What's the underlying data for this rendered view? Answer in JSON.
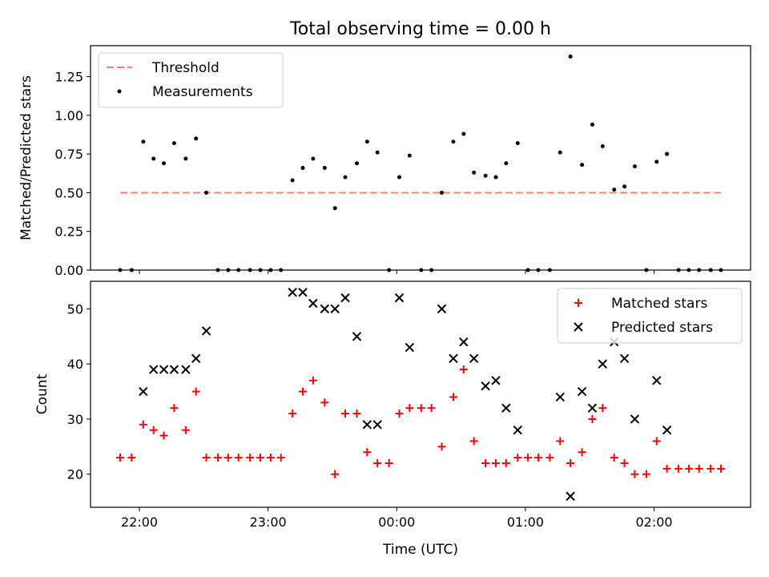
{
  "figure": {
    "title": "Total observing time = 0.00 h",
    "xlabel": "Time (UTC)",
    "xticks": [
      {
        "label": "22:00",
        "t": 22.0
      },
      {
        "label": "23:00",
        "t": 23.0
      },
      {
        "label": "00:00",
        "t": 24.0
      },
      {
        "label": "01:00",
        "t": 25.0
      },
      {
        "label": "02:00",
        "t": 26.0
      }
    ],
    "xlim": [
      21.62,
      26.75
    ]
  },
  "chart_data": [
    {
      "type": "scatter",
      "ylabel": "Matched/Predicted stars",
      "ylim": [
        0,
        1.45
      ],
      "yticks": [
        "0.00",
        "0.25",
        "0.50",
        "0.75",
        "1.00",
        "1.25"
      ],
      "legend": {
        "position": "upper-left",
        "entries": [
          "Threshold",
          "Measurements"
        ]
      },
      "threshold": {
        "name": "Threshold",
        "y": 0.5,
        "x_range": [
          21.85,
          26.53
        ],
        "color": "#ff7f7f"
      },
      "series": [
        {
          "name": "Measurements",
          "color": "#000000",
          "points": [
            [
              21.85,
              0.0
            ],
            [
              21.94,
              0.0
            ],
            [
              22.03,
              0.83
            ],
            [
              22.11,
              0.72
            ],
            [
              22.19,
              0.69
            ],
            [
              22.27,
              0.82
            ],
            [
              22.36,
              0.72
            ],
            [
              22.44,
              0.85
            ],
            [
              22.52,
              0.5
            ],
            [
              22.61,
              0.0
            ],
            [
              22.69,
              0.0
            ],
            [
              22.77,
              0.0
            ],
            [
              22.86,
              0.0
            ],
            [
              22.94,
              0.0
            ],
            [
              23.02,
              0.0
            ],
            [
              23.1,
              0.0
            ],
            [
              23.19,
              0.58
            ],
            [
              23.27,
              0.66
            ],
            [
              23.35,
              0.72
            ],
            [
              23.44,
              0.66
            ],
            [
              23.52,
              0.4
            ],
            [
              23.6,
              0.6
            ],
            [
              23.69,
              0.69
            ],
            [
              23.77,
              0.83
            ],
            [
              23.85,
              0.76
            ],
            [
              23.94,
              0.0
            ],
            [
              24.02,
              0.6
            ],
            [
              24.1,
              0.74
            ],
            [
              24.19,
              0.0
            ],
            [
              24.27,
              0.0
            ],
            [
              24.35,
              0.5
            ],
            [
              24.44,
              0.83
            ],
            [
              24.52,
              0.88
            ],
            [
              24.6,
              0.63
            ],
            [
              24.69,
              0.61
            ],
            [
              24.77,
              0.6
            ],
            [
              24.85,
              0.69
            ],
            [
              24.94,
              0.82
            ],
            [
              25.02,
              0.0
            ],
            [
              25.1,
              0.0
            ],
            [
              25.19,
              0.0
            ],
            [
              25.27,
              0.76
            ],
            [
              25.35,
              1.38
            ],
            [
              25.44,
              0.68
            ],
            [
              25.52,
              0.94
            ],
            [
              25.6,
              0.8
            ],
            [
              25.69,
              0.52
            ],
            [
              25.77,
              0.54
            ],
            [
              25.85,
              0.67
            ],
            [
              25.94,
              0.0
            ],
            [
              26.02,
              0.7
            ],
            [
              26.1,
              0.75
            ],
            [
              26.19,
              0.0
            ],
            [
              26.27,
              0.0
            ],
            [
              26.35,
              0.0
            ],
            [
              26.44,
              0.0
            ],
            [
              26.52,
              0.0
            ]
          ]
        }
      ]
    },
    {
      "type": "scatter",
      "ylabel": "Count",
      "ylim": [
        14,
        55
      ],
      "yticks": [
        "20",
        "30",
        "40",
        "50"
      ],
      "legend": {
        "position": "upper-right",
        "entries": [
          "Matched stars",
          "Predicted stars"
        ]
      },
      "series": [
        {
          "name": "Matched stars",
          "marker": "+",
          "color": "#ff0000",
          "points": [
            [
              21.85,
              23
            ],
            [
              21.94,
              23
            ],
            [
              22.03,
              29
            ],
            [
              22.11,
              28
            ],
            [
              22.19,
              27
            ],
            [
              22.27,
              32
            ],
            [
              22.36,
              28
            ],
            [
              22.44,
              35
            ],
            [
              22.52,
              23
            ],
            [
              22.61,
              23
            ],
            [
              22.69,
              23
            ],
            [
              22.77,
              23
            ],
            [
              22.86,
              23
            ],
            [
              22.94,
              23
            ],
            [
              23.02,
              23
            ],
            [
              23.1,
              23
            ],
            [
              23.19,
              31
            ],
            [
              23.27,
              35
            ],
            [
              23.35,
              37
            ],
            [
              23.44,
              33
            ],
            [
              23.52,
              20
            ],
            [
              23.6,
              31
            ],
            [
              23.69,
              31
            ],
            [
              23.77,
              24
            ],
            [
              23.85,
              22
            ],
            [
              23.94,
              22
            ],
            [
              24.02,
              31
            ],
            [
              24.1,
              32
            ],
            [
              24.19,
              32
            ],
            [
              24.27,
              32
            ],
            [
              24.35,
              25
            ],
            [
              24.44,
              34
            ],
            [
              24.52,
              39
            ],
            [
              24.6,
              26
            ],
            [
              24.69,
              22
            ],
            [
              24.77,
              22
            ],
            [
              24.85,
              22
            ],
            [
              24.94,
              23
            ],
            [
              25.02,
              23
            ],
            [
              25.1,
              23
            ],
            [
              25.19,
              23
            ],
            [
              25.27,
              26
            ],
            [
              25.35,
              22
            ],
            [
              25.44,
              24
            ],
            [
              25.52,
              30
            ],
            [
              25.6,
              32
            ],
            [
              25.69,
              23
            ],
            [
              25.77,
              22
            ],
            [
              25.85,
              20
            ],
            [
              25.94,
              20
            ],
            [
              26.02,
              26
            ],
            [
              26.1,
              21
            ],
            [
              26.19,
              21
            ],
            [
              26.27,
              21
            ],
            [
              26.35,
              21
            ],
            [
              26.44,
              21
            ],
            [
              26.52,
              21
            ]
          ]
        },
        {
          "name": "Predicted stars",
          "marker": "x",
          "color": "#000000",
          "points": [
            [
              22.03,
              35
            ],
            [
              22.11,
              39
            ],
            [
              22.19,
              39
            ],
            [
              22.27,
              39
            ],
            [
              22.36,
              39
            ],
            [
              22.44,
              41
            ],
            [
              22.52,
              46
            ],
            [
              23.19,
              53
            ],
            [
              23.27,
              53
            ],
            [
              23.35,
              51
            ],
            [
              23.44,
              50
            ],
            [
              23.52,
              50
            ],
            [
              23.6,
              52
            ],
            [
              23.69,
              45
            ],
            [
              23.77,
              29
            ],
            [
              23.85,
              29
            ],
            [
              24.02,
              52
            ],
            [
              24.1,
              43
            ],
            [
              24.35,
              50
            ],
            [
              24.44,
              41
            ],
            [
              24.52,
              44
            ],
            [
              24.6,
              41
            ],
            [
              24.69,
              36
            ],
            [
              24.77,
              37
            ],
            [
              24.85,
              32
            ],
            [
              24.94,
              28
            ],
            [
              25.27,
              34
            ],
            [
              25.35,
              16
            ],
            [
              25.44,
              35
            ],
            [
              25.52,
              32
            ],
            [
              25.6,
              40
            ],
            [
              25.69,
              44
            ],
            [
              25.77,
              41
            ],
            [
              25.85,
              30
            ],
            [
              26.02,
              37
            ],
            [
              26.1,
              28
            ]
          ]
        }
      ]
    }
  ]
}
